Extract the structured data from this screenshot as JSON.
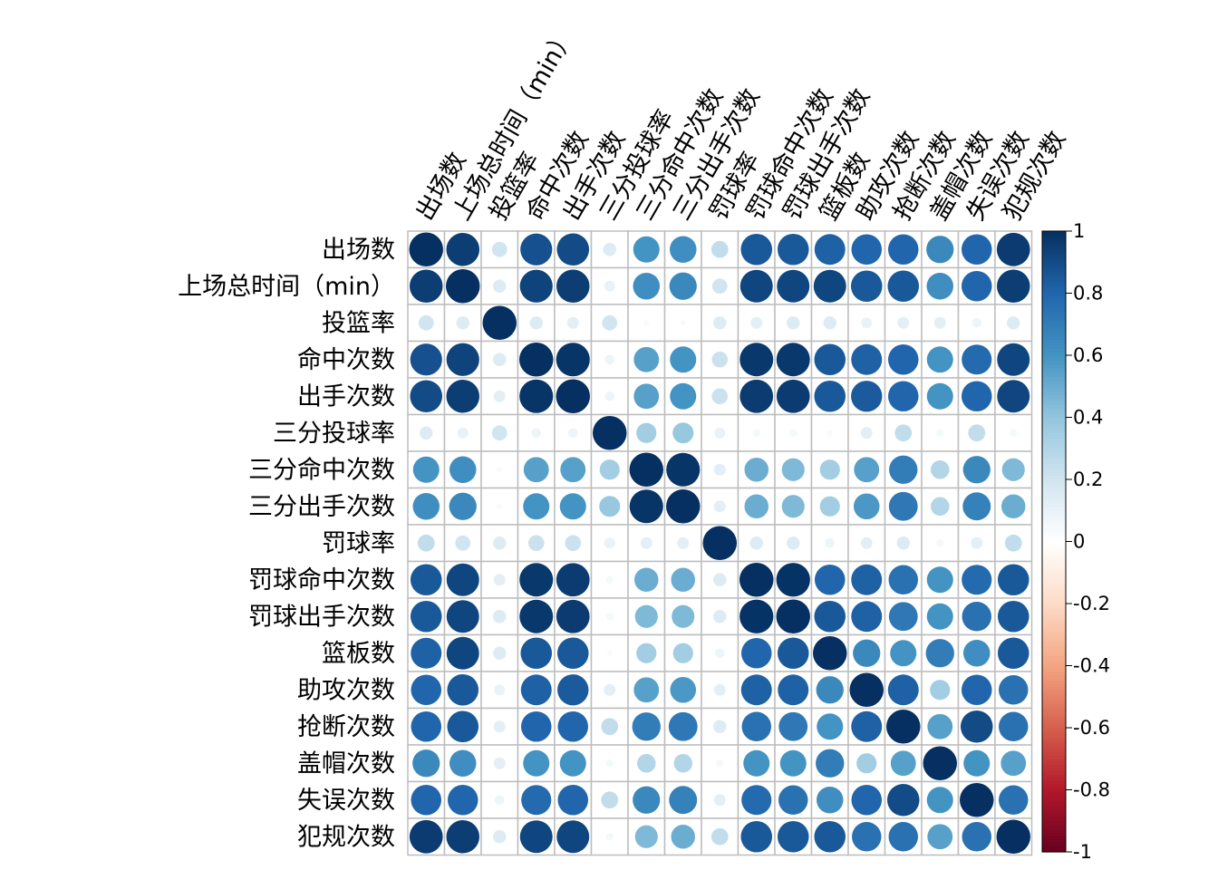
{
  "chart_data": {
    "type": "heatmap",
    "style": "correlation-circle-matrix",
    "variables": [
      "出场数",
      "上场总时间（min）",
      "投篮率",
      "命中次数",
      "出手次数",
      "三分投球率",
      "三分命中次数",
      "三分出手次数",
      "罚球率",
      "罚球命中次数",
      "罚球出手次数",
      "篮板数",
      "助攻次数",
      "抢断次数",
      "盖帽次数",
      "失误次数",
      "犯规次数"
    ],
    "matrix": [
      [
        1.0,
        0.95,
        0.2,
        0.88,
        0.9,
        0.15,
        0.6,
        0.62,
        0.25,
        0.85,
        0.85,
        0.82,
        0.8,
        0.8,
        0.65,
        0.8,
        0.96
      ],
      [
        0.95,
        1.0,
        0.15,
        0.93,
        0.95,
        0.1,
        0.62,
        0.65,
        0.2,
        0.92,
        0.92,
        0.92,
        0.85,
        0.85,
        0.62,
        0.8,
        0.95
      ],
      [
        0.2,
        0.15,
        1.0,
        0.15,
        0.12,
        0.2,
        0.03,
        0.03,
        0.15,
        0.12,
        0.15,
        0.15,
        0.1,
        0.12,
        0.12,
        0.08,
        0.15
      ],
      [
        0.88,
        0.93,
        0.15,
        1.0,
        0.98,
        0.08,
        0.55,
        0.6,
        0.22,
        0.97,
        0.97,
        0.85,
        0.82,
        0.8,
        0.6,
        0.78,
        0.92
      ],
      [
        0.9,
        0.95,
        0.12,
        0.98,
        1.0,
        0.08,
        0.55,
        0.6,
        0.22,
        0.96,
        0.96,
        0.85,
        0.84,
        0.8,
        0.6,
        0.8,
        0.92
      ],
      [
        0.15,
        0.1,
        0.2,
        0.08,
        0.08,
        1.0,
        0.35,
        0.38,
        0.1,
        0.05,
        0.05,
        0.03,
        0.12,
        0.25,
        0.05,
        0.25,
        0.05
      ],
      [
        0.6,
        0.62,
        0.03,
        0.55,
        0.55,
        0.35,
        1.0,
        0.98,
        0.12,
        0.5,
        0.45,
        0.35,
        0.55,
        0.7,
        0.3,
        0.65,
        0.45
      ],
      [
        0.62,
        0.65,
        0.03,
        0.6,
        0.6,
        0.38,
        0.98,
        1.0,
        0.12,
        0.5,
        0.45,
        0.35,
        0.58,
        0.72,
        0.3,
        0.68,
        0.5
      ],
      [
        0.25,
        0.2,
        0.15,
        0.22,
        0.22,
        0.1,
        0.12,
        0.12,
        1.0,
        0.15,
        0.15,
        0.08,
        0.12,
        0.15,
        0.05,
        0.12,
        0.25
      ],
      [
        0.85,
        0.92,
        0.12,
        0.97,
        0.96,
        0.05,
        0.5,
        0.5,
        0.15,
        1.0,
        0.99,
        0.8,
        0.82,
        0.75,
        0.6,
        0.78,
        0.85
      ],
      [
        0.85,
        0.92,
        0.15,
        0.97,
        0.96,
        0.05,
        0.45,
        0.45,
        0.15,
        0.99,
        1.0,
        0.85,
        0.82,
        0.72,
        0.6,
        0.75,
        0.85
      ],
      [
        0.82,
        0.92,
        0.15,
        0.85,
        0.85,
        0.03,
        0.35,
        0.35,
        0.08,
        0.8,
        0.85,
        1.0,
        0.65,
        0.6,
        0.7,
        0.62,
        0.85
      ],
      [
        0.8,
        0.85,
        0.1,
        0.82,
        0.84,
        0.12,
        0.55,
        0.58,
        0.12,
        0.82,
        0.82,
        0.65,
        1.0,
        0.82,
        0.35,
        0.8,
        0.75
      ],
      [
        0.8,
        0.85,
        0.12,
        0.8,
        0.8,
        0.25,
        0.7,
        0.72,
        0.15,
        0.75,
        0.72,
        0.6,
        0.82,
        1.0,
        0.55,
        0.9,
        0.75
      ],
      [
        0.65,
        0.62,
        0.12,
        0.6,
        0.6,
        0.05,
        0.3,
        0.3,
        0.05,
        0.6,
        0.6,
        0.7,
        0.35,
        0.55,
        1.0,
        0.6,
        0.55
      ],
      [
        0.8,
        0.8,
        0.08,
        0.78,
        0.8,
        0.25,
        0.65,
        0.68,
        0.12,
        0.78,
        0.75,
        0.62,
        0.8,
        0.9,
        0.6,
        1.0,
        0.75
      ],
      [
        0.96,
        0.95,
        0.15,
        0.92,
        0.92,
        0.05,
        0.45,
        0.5,
        0.25,
        0.85,
        0.85,
        0.85,
        0.75,
        0.75,
        0.55,
        0.75,
        1.0
      ]
    ],
    "colorbar": {
      "ticks": [
        "1",
        "0.8",
        "0.6",
        "0.4",
        "0.2",
        "0",
        "-0.2",
        "-0.4",
        "-0.6",
        "-0.8",
        "-1"
      ],
      "range": [
        -1,
        1
      ],
      "colors": [
        "#67001F",
        "#B2182B",
        "#D6604D",
        "#F4A582",
        "#FDDBC7",
        "#FFFFFF",
        "#D1E5F0",
        "#92C5DE",
        "#4393C3",
        "#2166AC",
        "#053061"
      ]
    },
    "grid": true
  }
}
